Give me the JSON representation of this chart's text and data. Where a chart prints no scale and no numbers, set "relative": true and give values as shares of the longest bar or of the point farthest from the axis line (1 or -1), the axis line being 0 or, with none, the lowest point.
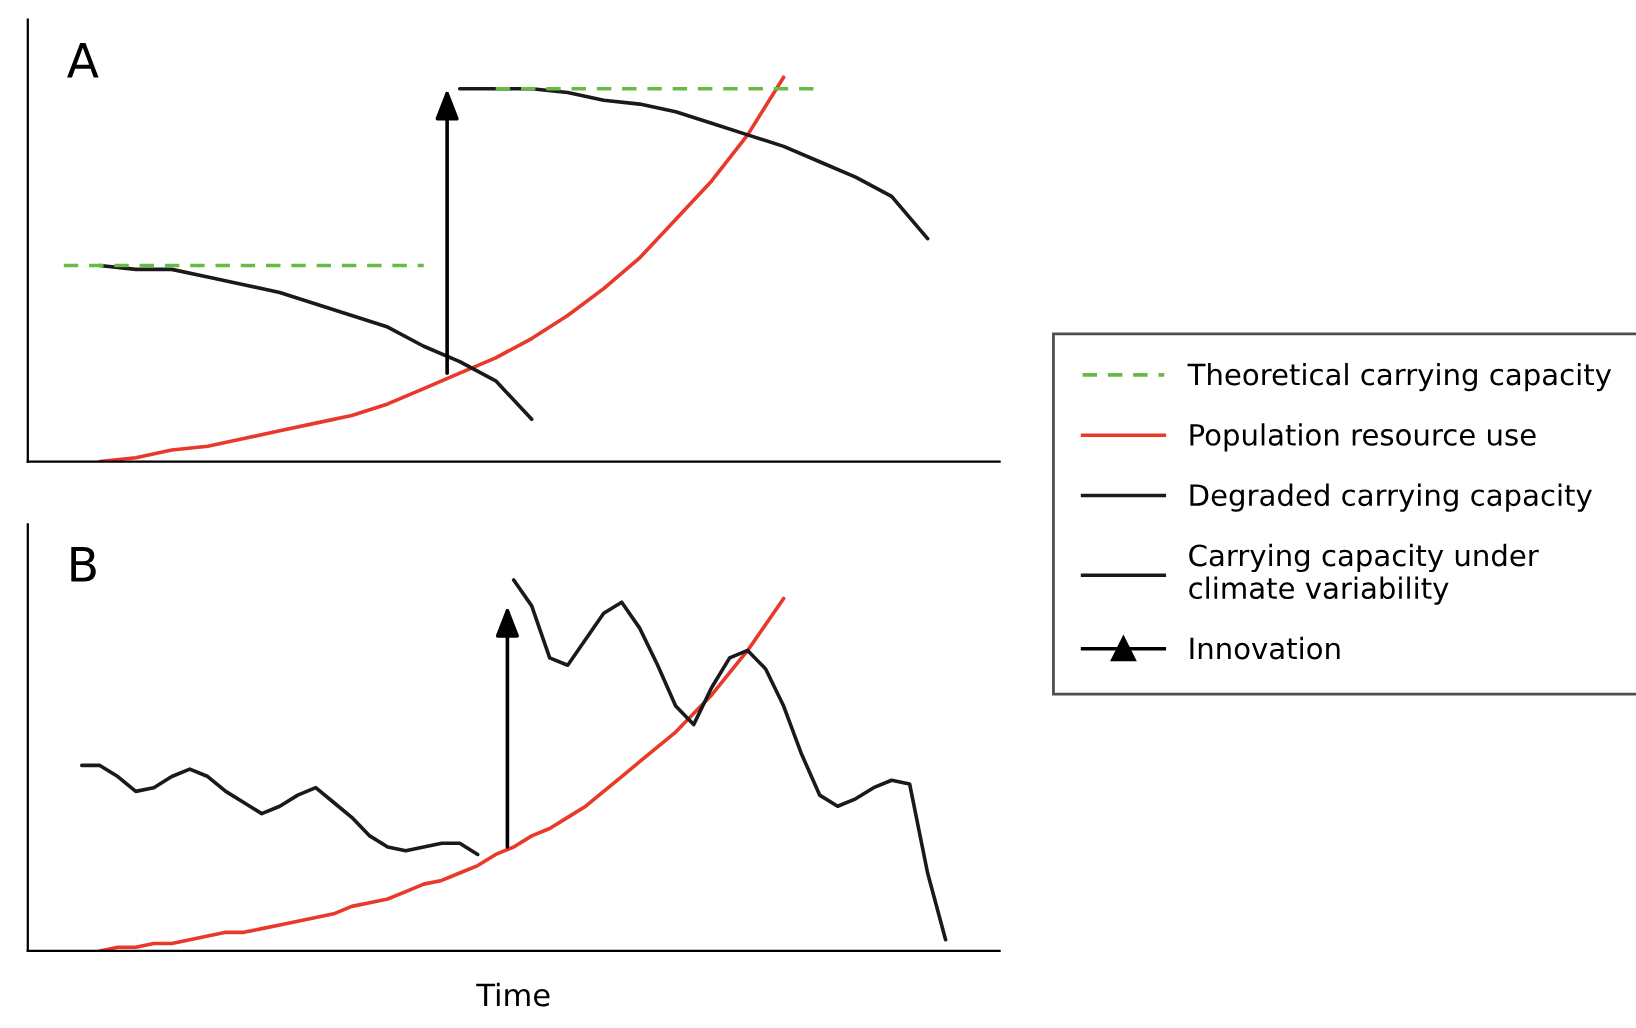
{
  "chart_data": [
    {
      "type": "line",
      "title": "A",
      "relative": true,
      "legend": "right",
      "annotations": [
        "Innovation"
      ],
      "categories": [
        null,
        null,
        null,
        null,
        null,
        null,
        null,
        null,
        null,
        null,
        null,
        null,
        null,
        null,
        null,
        null,
        null,
        null,
        null,
        null,
        null,
        null,
        null,
        null,
        null,
        null,
        null,
        null
      ],
      "series": [
        {
          "name": "Theoretical carrying capacity",
          "color": "#66bb44",
          "line_style": "dashed",
          "values": [
            null,
            0.51,
            0.51,
            0.51,
            0.51,
            0.51,
            0.51,
            0.51,
            0.51,
            0.51,
            0.51,
            0.51,
            null,
            null,
            null,
            null,
            null,
            null,
            null,
            null,
            null,
            null,
            null,
            null,
            null,
            null,
            null,
            null
          ]
        },
        {
          "color": "#66bb44",
          "line_style": "dashed",
          "values": [
            null,
            null,
            null,
            null,
            null,
            null,
            null,
            null,
            null,
            null,
            null,
            null,
            null,
            0.97,
            0.97,
            0.97,
            0.97,
            0.97,
            0.97,
            0.97,
            0.97,
            0.97,
            0.97,
            null,
            null,
            null,
            null,
            null
          ]
        },
        {
          "name": "Population resource use",
          "color": "#e8392b",
          "line_style": "solid",
          "values": [
            null,
            null,
            0.0,
            0.01,
            0.03,
            0.04,
            0.06,
            0.08,
            0.1,
            0.12,
            0.15,
            0.19,
            0.23,
            0.27,
            0.32,
            0.38,
            0.45,
            0.53,
            0.63,
            0.73,
            0.85,
            1.0,
            null,
            null,
            null,
            null,
            null,
            null
          ]
        },
        {
          "name": "Degraded carrying capacity",
          "color": "#1a1a1a",
          "line_style": "solid",
          "values": [
            null,
            null,
            0.51,
            0.5,
            0.5,
            0.48,
            0.46,
            0.44,
            0.41,
            0.38,
            0.35,
            0.3,
            0.26,
            0.21,
            0.11,
            null,
            null,
            null,
            null,
            null,
            null,
            null,
            null,
            null,
            null,
            null,
            null,
            null
          ]
        },
        {
          "color": "#1a1a1a",
          "line_style": "solid",
          "values": [
            null,
            null,
            null,
            null,
            null,
            null,
            null,
            null,
            null,
            null,
            null,
            null,
            0.97,
            0.97,
            0.97,
            0.96,
            0.94,
            0.93,
            0.91,
            0.88,
            0.85,
            0.82,
            0.78,
            0.74,
            0.69,
            0.58,
            null,
            null
          ]
        }
      ]
    },
    {
      "type": "line",
      "title": "B",
      "xlabel": "Time",
      "relative": true,
      "categories": [
        null,
        null,
        null,
        null,
        null,
        null,
        null,
        null,
        null,
        null,
        null,
        null,
        null,
        null,
        null,
        null,
        null,
        null,
        null,
        null,
        null,
        null,
        null,
        null,
        null,
        null,
        null,
        null,
        null,
        null,
        null,
        null,
        null,
        null,
        null,
        null,
        null,
        null,
        null,
        null,
        null,
        null,
        null,
        null,
        null,
        null,
        null,
        null,
        null,
        null,
        null,
        null,
        null,
        null,
        null
      ],
      "series": [
        {
          "color": "#e8392b",
          "line_style": "solid",
          "values": [
            null,
            null,
            null,
            null,
            0.0,
            0.01,
            0.01,
            0.02,
            0.02,
            0.03,
            0.04,
            0.05,
            0.05,
            0.06,
            0.07,
            0.08,
            0.09,
            0.1,
            0.12,
            0.13,
            0.14,
            0.16,
            0.18,
            0.19,
            0.21,
            0.23,
            0.26,
            0.28,
            0.31,
            0.33,
            0.36,
            0.39,
            0.43,
            0.47,
            0.51,
            0.55,
            0.59,
            0.64,
            0.69,
            0.75,
            0.81,
            0.88,
            0.95,
            null,
            null,
            null,
            null,
            null,
            null,
            null,
            null,
            null,
            null,
            null,
            null
          ]
        },
        {
          "name": "Carrying capacity under climate variability",
          "color": "#1a1a1a",
          "line_style": "solid",
          "values": [
            null,
            null,
            null,
            0.5,
            0.5,
            0.47,
            0.43,
            0.44,
            0.47,
            0.49,
            0.47,
            0.43,
            0.4,
            0.37,
            0.39,
            0.42,
            0.44,
            0.4,
            0.36,
            0.31,
            0.28,
            0.27,
            0.28,
            0.29,
            0.29,
            0.26,
            null,
            null,
            null,
            null,
            null,
            null,
            null,
            null,
            null,
            null,
            null,
            null,
            null,
            null,
            null,
            null,
            null,
            null,
            null,
            null,
            null,
            null,
            null,
            null,
            null,
            null,
            null,
            null,
            null
          ]
        },
        {
          "color": "#1a1a1a",
          "line_style": "solid",
          "values": [
            null,
            null,
            null,
            null,
            null,
            null,
            null,
            null,
            null,
            null,
            null,
            null,
            null,
            null,
            null,
            null,
            null,
            null,
            null,
            null,
            null,
            null,
            null,
            null,
            null,
            null,
            null,
            1.0,
            0.93,
            0.79,
            0.77,
            0.84,
            0.91,
            0.94,
            0.87,
            0.77,
            0.66,
            0.61,
            0.71,
            0.79,
            0.81,
            0.76,
            0.66,
            0.53,
            0.42,
            0.39,
            0.41,
            0.44,
            0.46,
            0.45,
            0.21,
            0.03,
            null,
            null,
            null
          ]
        }
      ]
    }
  ]
}
